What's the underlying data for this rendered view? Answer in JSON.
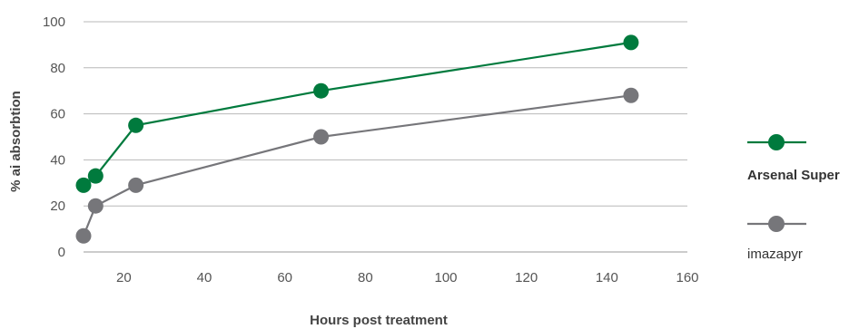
{
  "chart_data": {
    "type": "line",
    "title": "",
    "xlabel": "Hours post treatment",
    "ylabel": "% ai absorbtion",
    "xlim": [
      10,
      160
    ],
    "ylim": [
      0,
      100
    ],
    "xticks": [
      20,
      40,
      60,
      80,
      100,
      120,
      140,
      160
    ],
    "yticks": [
      0,
      20,
      40,
      60,
      80,
      100
    ],
    "grid": "horizontal",
    "legend_position": "right",
    "series": [
      {
        "name": "Arsenal Super",
        "color": "#007a3d",
        "x": [
          10,
          13,
          23,
          69,
          146
        ],
        "y": [
          29,
          33,
          55,
          70,
          91
        ]
      },
      {
        "name": "imazapyr",
        "color": "#76767a",
        "x": [
          10,
          13,
          23,
          69,
          146
        ],
        "y": [
          7,
          20,
          29,
          50,
          68
        ]
      }
    ]
  }
}
